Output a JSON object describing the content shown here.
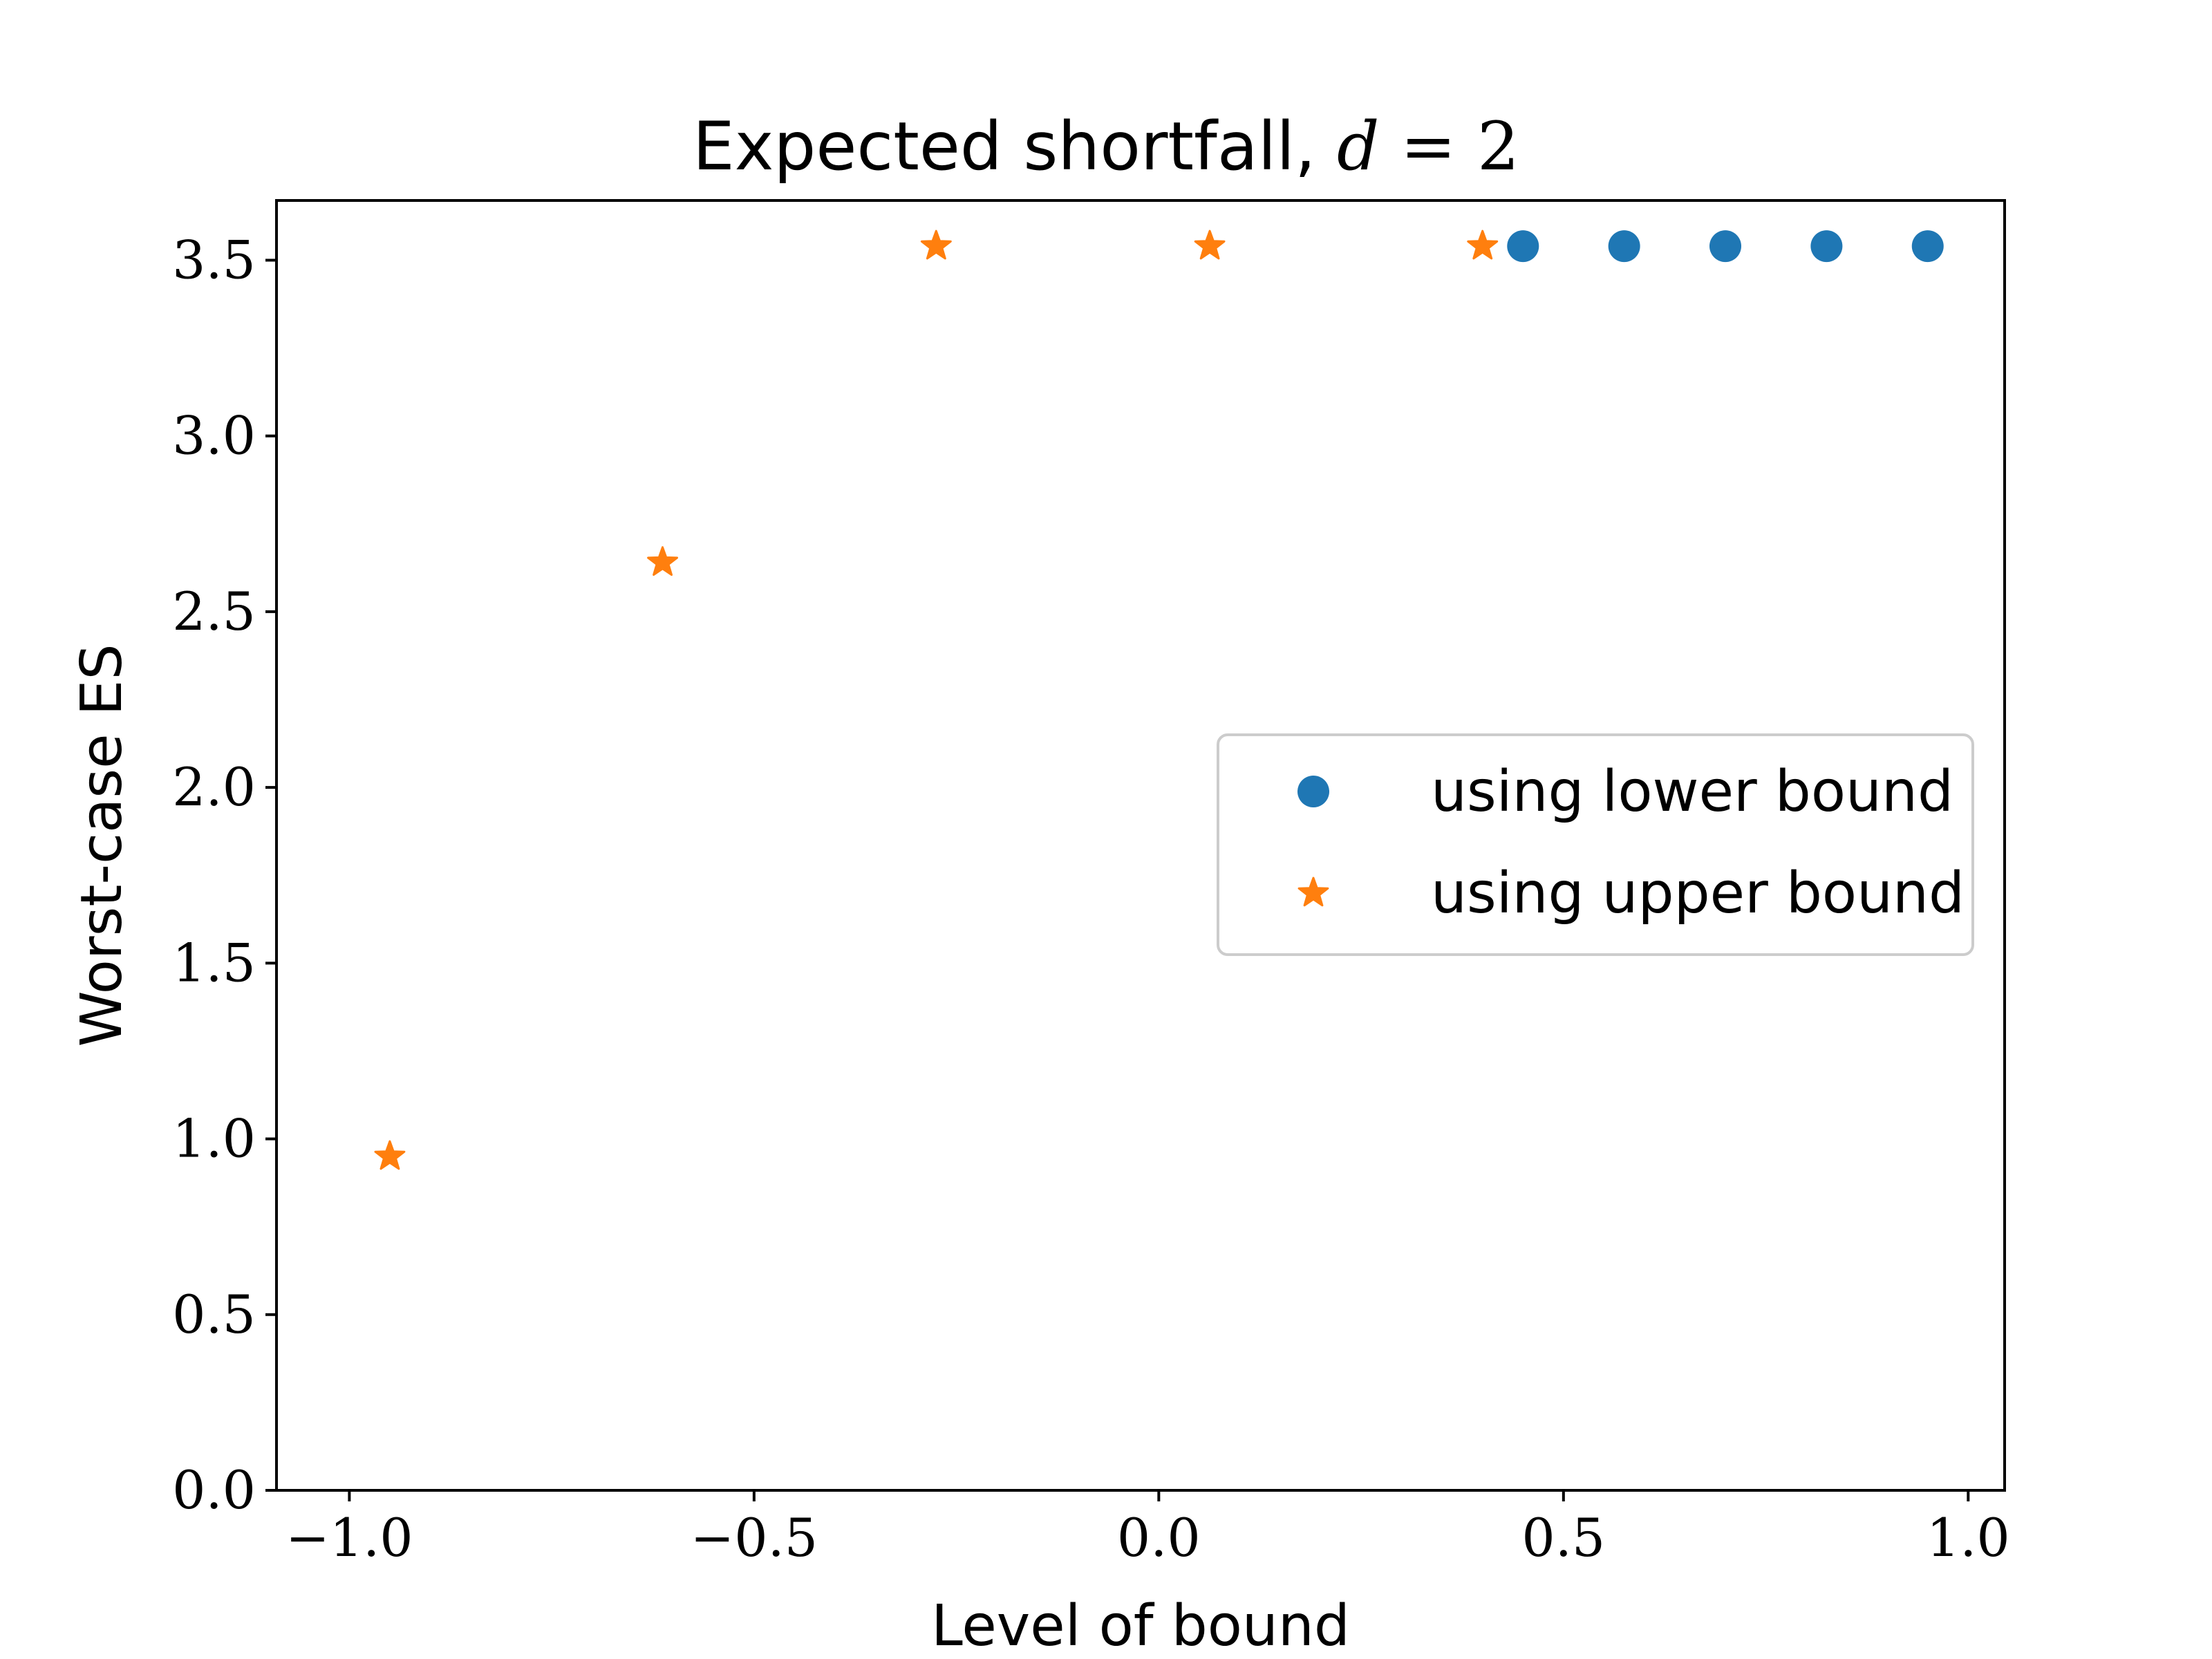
{
  "chart_data": {
    "type": "scatter",
    "title_prefix": "Expected shortfall, ",
    "title_math_var": "d",
    "title_math_rest": " = 2",
    "xlabel": "Level of bound",
    "ylabel": "Worst-case ES",
    "xlim": [
      -1.09,
      1.045
    ],
    "ylim": [
      0.0,
      3.67
    ],
    "xticks": [
      -1.0,
      -0.5,
      0.0,
      0.5,
      1.0
    ],
    "xtick_labels": [
      "−1.0",
      "−0.5",
      "0.0",
      "0.5",
      "1.0"
    ],
    "yticks": [
      0.0,
      0.5,
      1.0,
      1.5,
      2.0,
      2.5,
      3.0,
      3.5
    ],
    "ytick_labels": [
      "0.0",
      "0.5",
      "1.0",
      "1.5",
      "2.0",
      "2.5",
      "3.0",
      "3.5"
    ],
    "grid": false,
    "legend_position": "center-right",
    "series": [
      {
        "name": "using lower bound",
        "marker": "circle",
        "color": "#1f77b4",
        "x": [
          0.45,
          0.575,
          0.7,
          0.825,
          0.95
        ],
        "y": [
          3.54,
          3.54,
          3.54,
          3.54,
          3.54
        ]
      },
      {
        "name": "using upper bound",
        "marker": "star",
        "color": "#ff7f0e",
        "x": [
          -0.95,
          -0.613,
          -0.275,
          0.063,
          0.4
        ],
        "y": [
          0.95,
          2.64,
          3.54,
          3.54,
          3.54
        ]
      }
    ]
  }
}
